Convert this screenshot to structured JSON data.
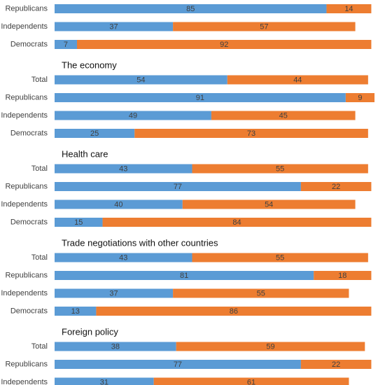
{
  "chart_data": [
    {
      "type": "stacked-hbar",
      "categories": [
        "Republicans",
        "Independents",
        "Democrats"
      ],
      "series": [
        {
          "color": "#5b9bd5",
          "values": [
            85,
            37,
            7
          ]
        },
        {
          "color": "#ed7d31",
          "values": [
            14,
            57,
            92
          ]
        }
      ],
      "xlim": [
        0,
        100
      ]
    },
    {
      "type": "stacked-hbar",
      "title": "The economy",
      "categories": [
        "Total",
        "Republicans",
        "Independents",
        "Democrats"
      ],
      "series": [
        {
          "color": "#5b9bd5",
          "values": [
            54,
            91,
            49,
            25
          ]
        },
        {
          "color": "#ed7d31",
          "values": [
            44,
            9,
            45,
            73
          ]
        }
      ],
      "xlim": [
        0,
        100
      ]
    },
    {
      "type": "stacked-hbar",
      "title": "Health care",
      "categories": [
        "Total",
        "Republicans",
        "Independents",
        "Democrats"
      ],
      "series": [
        {
          "color": "#5b9bd5",
          "values": [
            43,
            77,
            40,
            15
          ]
        },
        {
          "color": "#ed7d31",
          "values": [
            55,
            22,
            54,
            84
          ]
        }
      ],
      "xlim": [
        0,
        100
      ]
    },
    {
      "type": "stacked-hbar",
      "title": "Trade negotiations with other countries",
      "categories": [
        "Total",
        "Republicans",
        "Independents",
        "Democrats"
      ],
      "series": [
        {
          "color": "#5b9bd5",
          "values": [
            43,
            81,
            37,
            13
          ]
        },
        {
          "color": "#ed7d31",
          "values": [
            55,
            18,
            55,
            86
          ]
        }
      ],
      "xlim": [
        0,
        100
      ]
    },
    {
      "type": "stacked-hbar",
      "title": "Foreign policy",
      "categories": [
        "Total",
        "Republicans",
        "Independents"
      ],
      "series": [
        {
          "color": "#5b9bd5",
          "values": [
            38,
            77,
            31
          ]
        },
        {
          "color": "#ed7d31",
          "values": [
            59,
            22,
            61
          ]
        }
      ],
      "xlim": [
        0,
        100
      ]
    }
  ]
}
